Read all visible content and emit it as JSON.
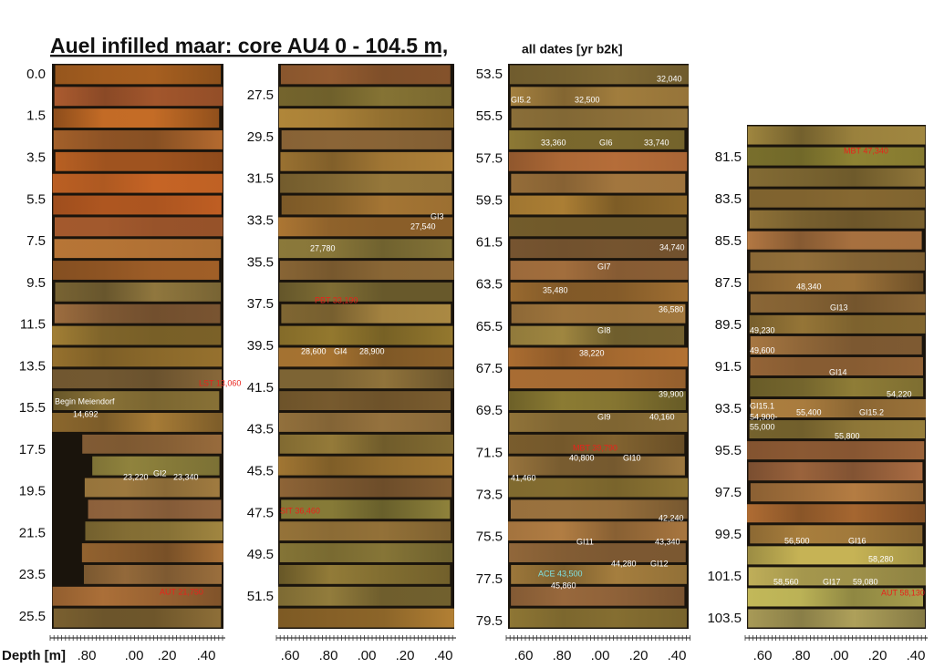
{
  "title": "Auel infilled maar: core AU4   0 - 104.5 m,",
  "subtitle": "all dates [yr b2k]",
  "depth_axis_label": "Depth [m]",
  "columns": [
    {
      "depths": [
        "0.0",
        "1.5",
        "3.5",
        "5.5",
        "7.5",
        "9.5",
        "11.5",
        "13.5",
        "15.5",
        "17.5",
        "19.5",
        "21.5",
        "23.5",
        "25.5"
      ],
      "scale": [
        ".80",
        ".00",
        ".20",
        ".40"
      ],
      "annotations": [
        "LST 13,060",
        "Begin Meiendorf",
        "14,692",
        "23,220",
        "GI2",
        "23,340",
        "AUT 21,750"
      ]
    },
    {
      "depths": [
        "27.5",
        "29.5",
        "31.5",
        "33.5",
        "35.5",
        "37.5",
        "39.5",
        "41.5",
        "43.5",
        "45.5",
        "47.5",
        "49.5",
        "51.5"
      ],
      "scale": [
        ".60",
        ".80",
        ".00",
        ".20",
        ".40"
      ],
      "annotations": [
        "GI3",
        "27,540",
        "27,780",
        "PBT 33,190",
        "28,600",
        "GI4",
        "28,900",
        "SIT 36,460"
      ]
    },
    {
      "depths": [
        "53.5",
        "55.5",
        "57.5",
        "59.5",
        "61.5",
        "63.5",
        "65.5",
        "67.5",
        "69.5",
        "71.5",
        "73.5",
        "75.5",
        "77.5",
        "79.5"
      ],
      "scale": [
        ".60",
        ".80",
        ".00",
        ".20",
        ".40"
      ],
      "annotations": [
        "32,040",
        "GI5.2",
        "32,500",
        "33,360",
        "GI6",
        "33,740",
        "34,740",
        "GI7",
        "35,480",
        "36,580",
        "GI8",
        "38,220",
        "39,900",
        "GI9",
        "40,160",
        "MBT 39,790",
        "40,800",
        "GI10",
        "41,460",
        "42,240",
        "GI11",
        "43,340",
        "44,280",
        "GI12",
        "ACE  43,500",
        "45,860"
      ]
    },
    {
      "depths": [
        "81.5",
        "83.5",
        "85.5",
        "87.5",
        "89.5",
        "91.5",
        "93.5",
        "95.5",
        "97.5",
        "99.5",
        "101.5",
        "103.5"
      ],
      "scale": [
        ".60",
        ".80",
        ".00",
        ".20",
        ".40"
      ],
      "annotations": [
        "MBT 47,340",
        "48,340",
        "GI13",
        "49,230",
        "49,600",
        "GI14",
        "54,220",
        "GI15.1",
        "54,900-",
        "55,000",
        "55,400",
        "GI15.2",
        "55,800",
        "56,500",
        "GI16",
        "58,280",
        "58,560",
        "GI17",
        "59,080",
        "AUT 58,130"
      ]
    }
  ]
}
